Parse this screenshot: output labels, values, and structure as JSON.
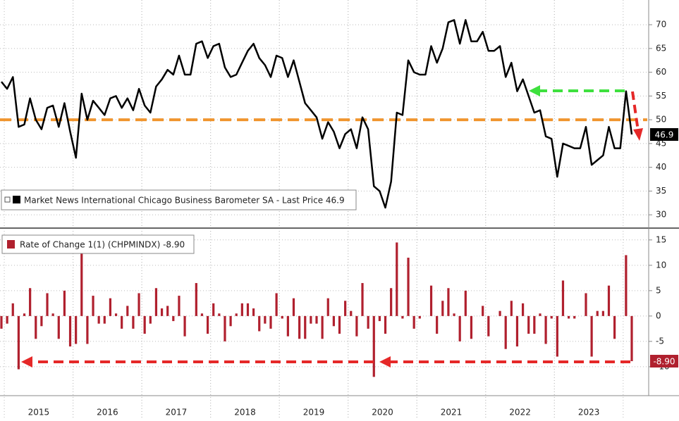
{
  "chart_data": [
    {
      "type": "line",
      "series": [
        {
          "name": "Market News International Chicago Business Barometer SA - Last Price 46.9",
          "color": "#000000",
          "values": [
            58,
            56.5,
            59,
            48.5,
            49,
            54.5,
            50,
            48,
            52.5,
            53,
            48.5,
            53.5,
            47.5,
            42,
            55.5,
            50,
            54,
            52.5,
            51,
            54.5,
            55,
            52.5,
            54.5,
            52,
            56.5,
            53,
            51.5,
            57,
            58.5,
            60.5,
            59.5,
            63.5,
            59.5,
            59.5,
            66,
            66.5,
            63,
            65.5,
            66,
            61,
            59,
            59.5,
            62,
            64.5,
            66,
            63,
            61.5,
            59,
            63.5,
            63,
            59,
            62.5,
            58,
            53.5,
            52,
            50.5,
            46,
            49.5,
            47.5,
            44,
            47,
            48,
            44,
            50.5,
            48,
            36,
            35,
            31.5,
            37,
            51.5,
            51,
            62.5,
            60,
            59.5,
            59.5,
            65.5,
            62,
            65,
            70.5,
            71,
            66,
            71,
            66.5,
            66.5,
            68.5,
            64.5,
            64.5,
            65.5,
            59,
            62,
            56,
            58.5,
            55,
            51.5,
            52,
            46.5,
            46,
            38,
            45,
            44.5,
            44,
            44,
            48.5,
            40.5,
            41.5,
            42.5,
            48.5,
            44,
            44,
            56,
            46.9
          ]
        }
      ],
      "ylim": [
        27.5,
        75.2
      ],
      "yticks": [
        30,
        35,
        40,
        45,
        50,
        55,
        60,
        65,
        70
      ],
      "reference_line": 50,
      "reference_color": "#f0952e",
      "grid": true
    },
    {
      "type": "bar",
      "categories": [
        null,
        null,
        null,
        null,
        null,
        null,
        null,
        "2015",
        null,
        null,
        null,
        null,
        null,
        null,
        null,
        null,
        null,
        null,
        null,
        "2016",
        null,
        null,
        null,
        null,
        null,
        null,
        null,
        null,
        null,
        null,
        null,
        "2017",
        null,
        null,
        null,
        null,
        null,
        null,
        null,
        null,
        null,
        null,
        null,
        "2018",
        null,
        null,
        null,
        null,
        null,
        null,
        null,
        null,
        null,
        null,
        null,
        "2019",
        null,
        null,
        null,
        null,
        null,
        null,
        null,
        null,
        null,
        null,
        null,
        "2020",
        null,
        null,
        null,
        null,
        null,
        null,
        null,
        null,
        null,
        null,
        null,
        "2021",
        null,
        null,
        null,
        null,
        null,
        null,
        null,
        null,
        null,
        null,
        null,
        "2022",
        null,
        null,
        null,
        null,
        null,
        null,
        null,
        null,
        null,
        null,
        null,
        "2023",
        null,
        null,
        null,
        null,
        null,
        null,
        null
      ],
      "series": [
        {
          "name": "Rate of Change 1(1) (CHPMINDX) -8.90",
          "color": "#b0202e",
          "values": [
            -2.5,
            -1.5,
            2.5,
            -10.5,
            0.5,
            5.5,
            -4.5,
            -2,
            4.5,
            0.5,
            -4.5,
            5,
            -6,
            -5.5,
            13.5,
            -5.5,
            4,
            -1.5,
            -1.5,
            3.5,
            0.5,
            -2.5,
            2,
            -2.5,
            4.5,
            -3.5,
            -1.5,
            5.5,
            1.5,
            2,
            -1,
            4,
            -4,
            0,
            6.5,
            0.5,
            -3.5,
            2.5,
            0.5,
            -5,
            -2,
            0.5,
            2.5,
            2.5,
            1.5,
            -3,
            -1.5,
            -2.5,
            4.5,
            -0.5,
            -4,
            3.5,
            -4.5,
            -4.5,
            -1.5,
            -1.5,
            -4.5,
            3.5,
            -2,
            -3.5,
            3,
            1,
            -4,
            6.5,
            -2.5,
            -12,
            -1,
            -3.5,
            5.5,
            14.5,
            -0.5,
            11.5,
            -2.5,
            -0.5,
            0,
            6,
            -3.5,
            3,
            5.5,
            0.5,
            -5,
            5,
            -4.5,
            0,
            2,
            -4,
            0,
            1,
            -6.5,
            3,
            -6,
            2.5,
            -3.5,
            -3.5,
            0.5,
            -5.5,
            -0.5,
            -8,
            7,
            -0.5,
            -0.5,
            0,
            4.5,
            -8,
            1,
            1,
            6,
            -4.5,
            0,
            12,
            -8.9
          ],
          "value_labels": [
            null,
            null,
            null,
            null,
            null,
            null,
            null,
            null,
            null,
            null,
            null,
            null,
            null,
            null,
            null,
            null,
            null,
            null,
            null,
            null,
            null,
            null,
            null,
            null,
            null,
            null,
            null,
            null,
            null,
            null,
            null,
            null,
            null,
            null,
            null,
            null,
            null,
            null,
            null,
            null,
            null,
            null,
            null,
            null,
            null,
            null,
            null,
            null,
            null,
            null,
            null,
            null,
            null,
            null,
            null,
            null,
            null,
            null,
            null,
            null,
            null,
            null,
            null,
            null,
            null,
            null,
            null,
            null,
            null,
            null,
            null,
            null,
            null,
            null,
            null,
            null,
            null,
            null,
            null,
            null,
            null,
            null,
            null,
            null,
            null,
            null,
            null,
            null,
            null,
            null,
            null,
            null,
            null,
            null,
            null,
            null,
            null,
            null,
            null,
            null,
            null,
            null,
            null,
            null,
            null,
            null,
            null,
            null,
            null,
            null,
            "-8.90"
          ]
        }
      ],
      "ylim": [
        -15.7,
        16.5
      ],
      "yticks": [
        -10,
        -5,
        0,
        5,
        10,
        15
      ],
      "grid": true
    }
  ]
}
